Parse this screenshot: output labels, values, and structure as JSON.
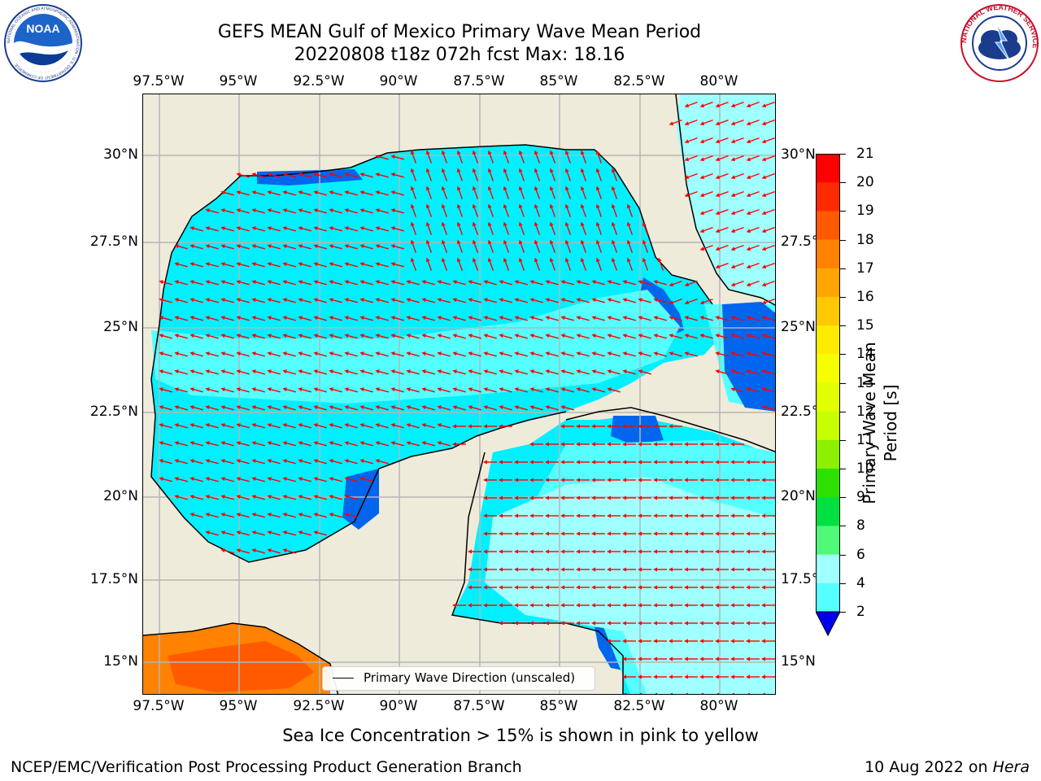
{
  "title": {
    "line1": "GEFS MEAN Gulf of Mexico Primary Wave Mean Period",
    "line2": "20220808 t18z 072h fcst   Max: 18.16"
  },
  "map": {
    "lon_labels": [
      "97.5°W",
      "95°W",
      "92.5°W",
      "90°W",
      "87.5°W",
      "85°W",
      "82.5°W",
      "80°W"
    ],
    "lat_labels": [
      "30°N",
      "27.5°N",
      "25°N",
      "22.5°N",
      "20°N",
      "17.5°N",
      "15°N"
    ],
    "colors": {
      "land": "#efebdb",
      "period_2_4": "#0066ee",
      "period_4_6": "#00f0ff",
      "period_6_8": "#55ffff",
      "period_8_9": "#a0ffff",
      "arrow": "#ff0000"
    },
    "legend_label": "Primary Wave Direction (unscaled)"
  },
  "colorbar": {
    "label": "Primary Wave Mean Period [s]",
    "ticks": [
      "21",
      "20",
      "19",
      "18",
      "17",
      "16",
      "15",
      "14",
      "13",
      "12",
      "11",
      "10",
      "9",
      "8",
      "6",
      "4",
      "2"
    ],
    "colors": [
      "#ff0000",
      "#ff2a00",
      "#ff5a00",
      "#ff8200",
      "#ffa500",
      "#ffc800",
      "#ffeb00",
      "#f5ff00",
      "#e1ff00",
      "#c8ff00",
      "#8cf000",
      "#2ee000",
      "#00e040",
      "#50fa78",
      "#a0ffff",
      "#55ffff",
      "#00f0ff",
      "#0066ee"
    ],
    "underflow_color": "#0000ee"
  },
  "subtitle": "Sea Ice Concentration > 15% is shown in pink to yellow",
  "footer": {
    "left": "NCEP/EMC/Verification Post Processing Product Generation Branch",
    "date": "10 Aug 2022 on",
    "host": "Hera"
  },
  "logos": {
    "noaa_text": "NOAA",
    "noaa_ring": "NATIONAL OCEANIC AND ATMOSPHERIC ADMINISTRATION · U.S. DEPARTMENT OF COMMERCE",
    "nws_ring": "NATIONAL WEATHER SERVICE"
  }
}
